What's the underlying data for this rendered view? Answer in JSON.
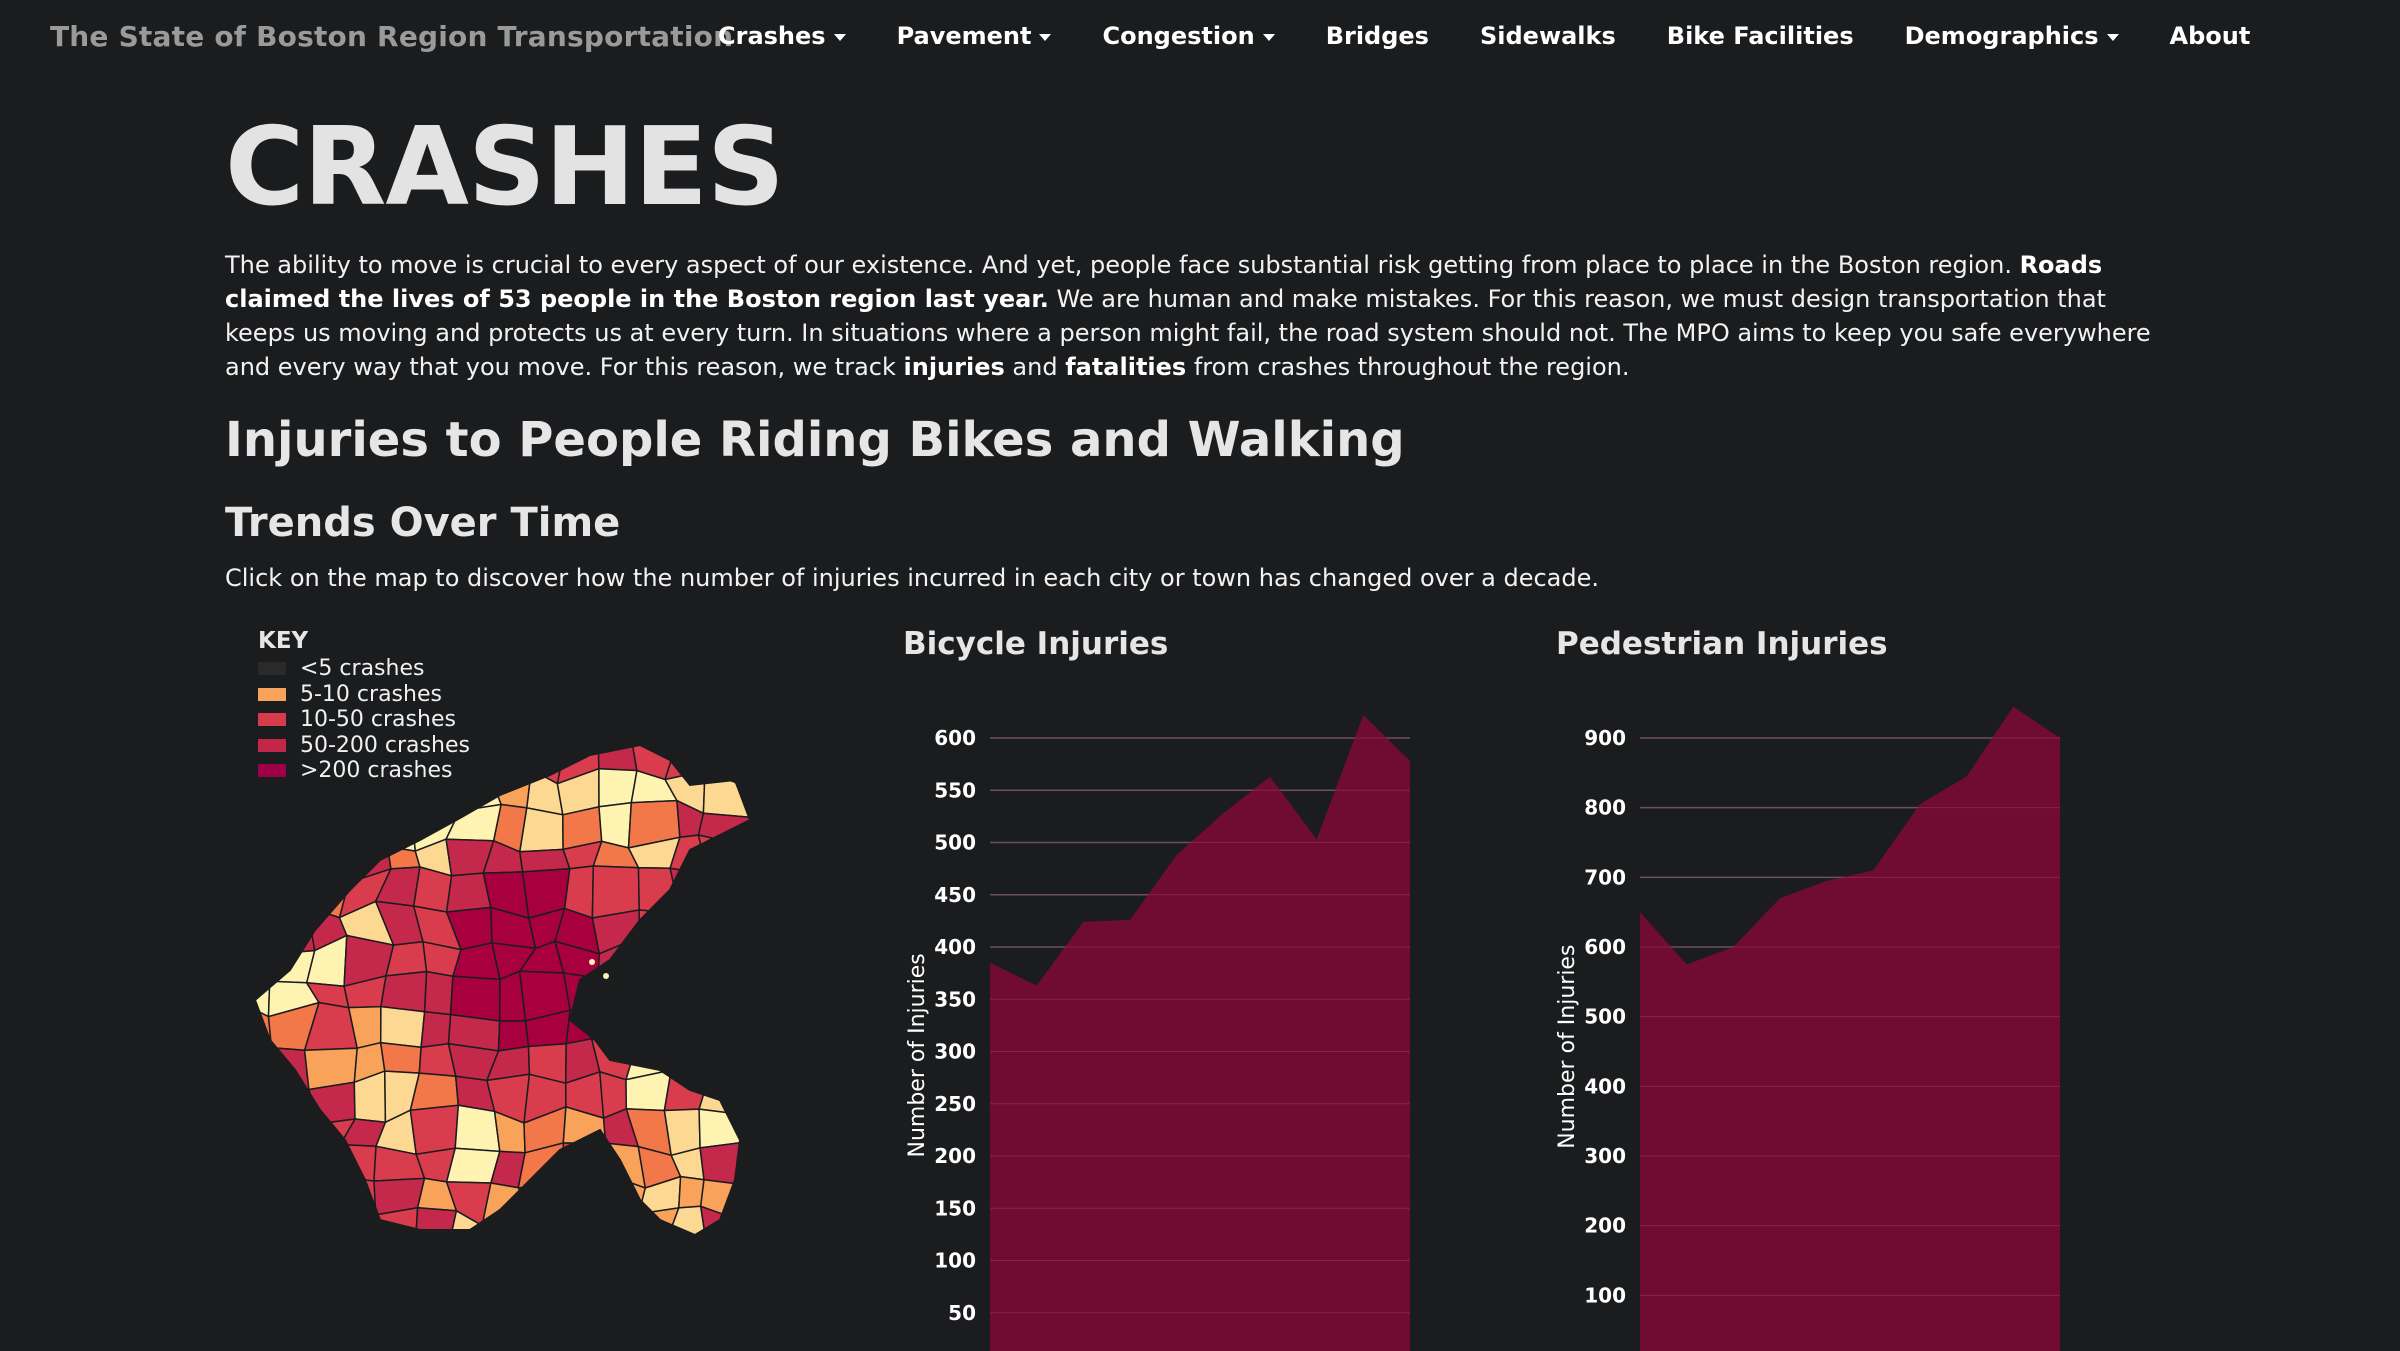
{
  "nav": {
    "brand": "The State of Boston Region Transportation",
    "items": [
      {
        "label": "Crashes",
        "dropdown": true
      },
      {
        "label": "Pavement",
        "dropdown": true
      },
      {
        "label": "Congestion",
        "dropdown": true
      },
      {
        "label": "Bridges",
        "dropdown": false
      },
      {
        "label": "Sidewalks",
        "dropdown": false
      },
      {
        "label": "Bike Facilities",
        "dropdown": false
      },
      {
        "label": "Demographics",
        "dropdown": true
      },
      {
        "label": "About",
        "dropdown": false
      }
    ]
  },
  "page": {
    "title": "CRASHES",
    "intro": {
      "part1": "The ability to move is crucial to every aspect of our existence. And yet, people face substantial risk getting from place to place in the Boston region. ",
      "bold1": "Roads claimed the lives of 53 people in the Boston region last year.",
      "part2": " We are human and make mistakes. For this reason, we must design transportation that keeps us moving and protects us at every turn. In situations where a person might fail, the road system should not. The MPO aims to keep you safe everywhere and every way that you move. For this reason, we track ",
      "bold2": "injuries",
      "part3": " and ",
      "bold3": "fatalities",
      "part4": " from crashes throughout the region."
    },
    "section_title": "Injuries to People Riding Bikes and Walking",
    "subsection_title": "Trends Over Time",
    "instructions": "Click on the map to discover how the number of injuries incurred in each city or town has changed over a decade."
  },
  "key": {
    "title": "KEY",
    "items": [
      {
        "label": "<5 crashes",
        "color": "#2a2a2a"
      },
      {
        "label": "5-10 crashes",
        "color": "#f9a35a"
      },
      {
        "label": "10-50 crashes",
        "color": "#d63c4a"
      },
      {
        "label": "50-200 crashes",
        "color": "#c2274a"
      },
      {
        "label": ">200 crashes",
        "color": "#9d0045"
      }
    ]
  },
  "map_colors": [
    "#fef3b0",
    "#fdd892",
    "#f9a35a",
    "#f27849",
    "#d93d4d",
    "#c4284a",
    "#a8003e"
  ],
  "chart_data": [
    {
      "type": "area",
      "title": "Bicycle Injuries",
      "ylabel": "Number of Injuries",
      "color": "#730b30",
      "ylim": [
        0,
        600
      ],
      "yticks": [
        50,
        100,
        150,
        200,
        250,
        300,
        350,
        400,
        450,
        500,
        550,
        600
      ],
      "values": [
        385,
        363,
        424,
        426,
        488,
        528,
        563,
        503,
        622,
        578
      ]
    },
    {
      "type": "area",
      "title": "Pedestrian Injuries",
      "ylabel": "Number of Injuries",
      "color": "#730b30",
      "ylim": [
        0,
        900
      ],
      "yticks": [
        100,
        200,
        300,
        400,
        500,
        600,
        700,
        800,
        900
      ],
      "values": [
        650,
        575,
        600,
        670,
        695,
        710,
        805,
        845,
        945,
        900
      ]
    }
  ]
}
